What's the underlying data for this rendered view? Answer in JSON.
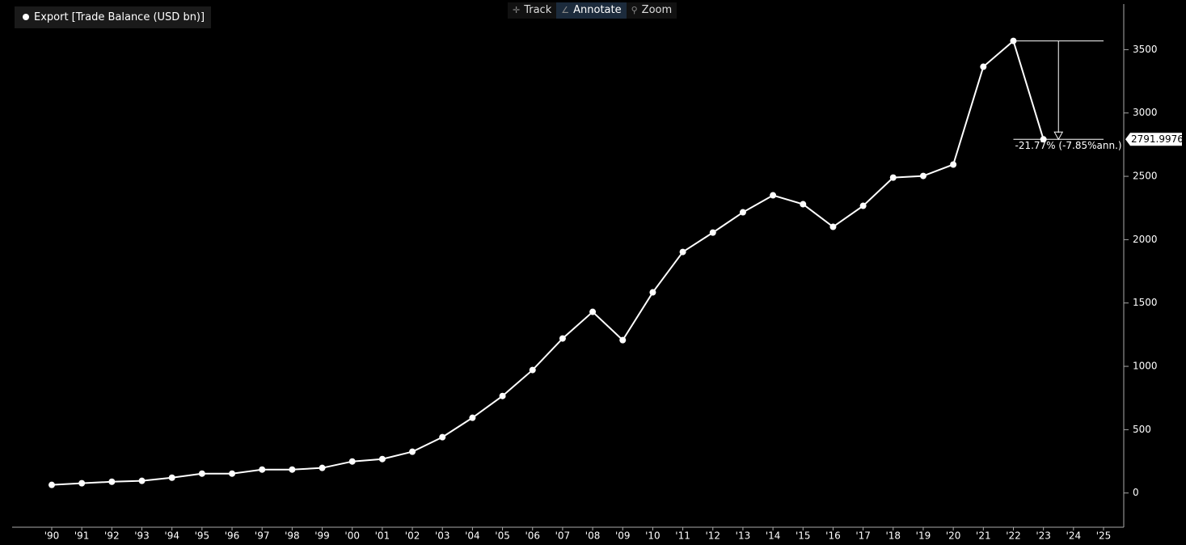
{
  "toolbar": {
    "buttons": [
      "Track",
      "Annotate",
      "Zoom"
    ]
  },
  "chart_data": {
    "type": "line",
    "categories": [
      "'90",
      "'91",
      "'92",
      "'93",
      "'94",
      "'95",
      "'96",
      "'97",
      "'98",
      "'99",
      "'00",
      "'01",
      "'02",
      "'03",
      "'04",
      "'05",
      "'06",
      "'07",
      "'08",
      "'09",
      "'10",
      "'11",
      "'12",
      "'13",
      "'14",
      "'15",
      "'16",
      "'17",
      "'18",
      "'19",
      "'20",
      "'21",
      "'22",
      "'23",
      "'24",
      "'25"
    ],
    "series": [
      {
        "name": "Export [Trade Balance (USD bn)]",
        "color": "#ffffff",
        "values": [
          64,
          77,
          89,
          96,
          121,
          153,
          153,
          185,
          185,
          198,
          249,
          268,
          326,
          441,
          594,
          766,
          971,
          1220,
          1430,
          1207,
          1584,
          1903,
          2056,
          2216,
          2350,
          2280,
          2101,
          2267,
          2490,
          2503,
          2593,
          3365,
          3569,
          2791.9976,
          null,
          null
        ]
      }
    ],
    "ylim": [
      -270,
      3860
    ],
    "yticks": [
      0,
      500,
      1000,
      1500,
      2000,
      2500,
      3000,
      3500
    ],
    "annotation": "-21.77% (-7.85%ann.)",
    "grid": false
  }
}
